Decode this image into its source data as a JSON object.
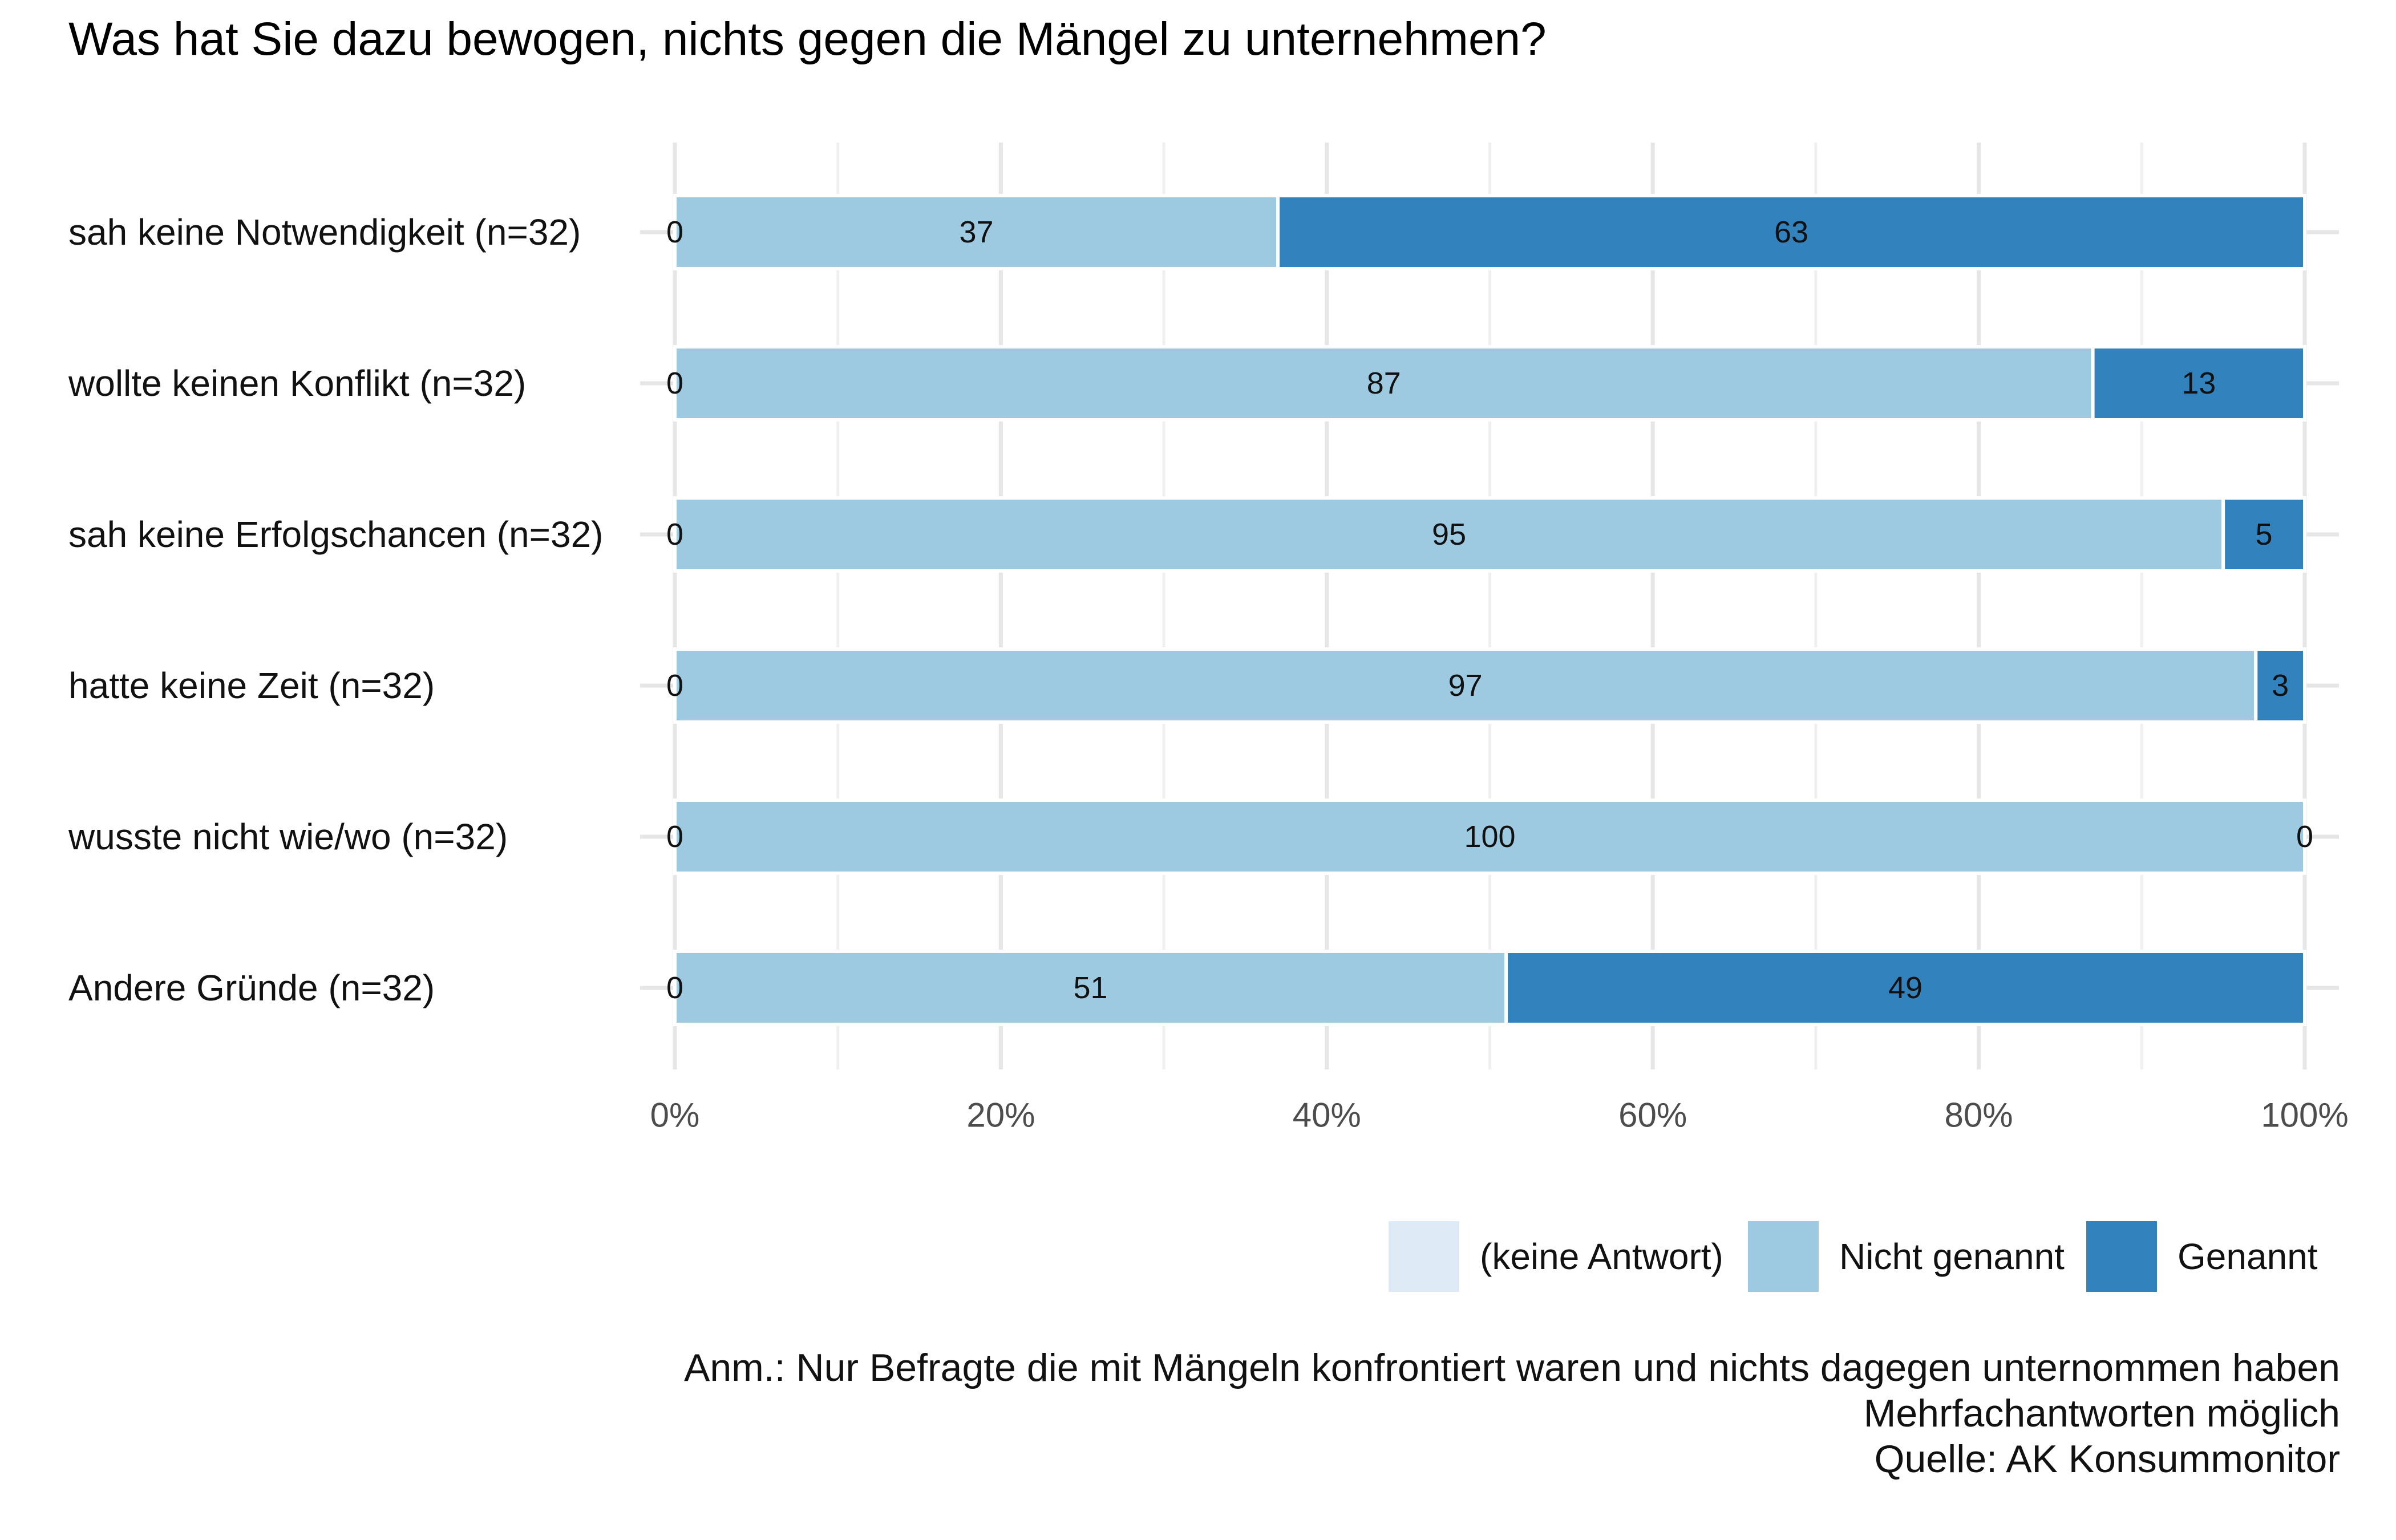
{
  "title": "Was hat Sie dazu bewogen, nichts gegen die Mängel zu unternehmen?",
  "caption": [
    "Anm.: Nur Befragte die mit Mängeln konfrontiert waren und nichts dagegen unternommen haben",
    "Mehrfachantworten möglich",
    "Quelle: AK Konsummonitor"
  ],
  "chart_data": {
    "type": "bar",
    "orientation": "horizontal",
    "stacked": true,
    "percent": true,
    "title": "Was hat Sie dazu bewogen, nichts gegen die Mängel zu unternehmen?",
    "categories": [
      "sah keine Notwendigkeit (n=32)",
      "wollte keinen Konflikt (n=32)",
      "sah keine Erfolgschancen (n=32)",
      "hatte keine Zeit (n=32)",
      "wusste nicht wie/wo (n=32)",
      "Andere Gründe (n=32)"
    ],
    "series": [
      {
        "name": "(keine Antwort)",
        "color": "#deebf7",
        "values": [
          0,
          0,
          0,
          0,
          0,
          0
        ]
      },
      {
        "name": "Nicht genannt",
        "color": "#9ecae1",
        "values": [
          37,
          87,
          95,
          97,
          100,
          51
        ]
      },
      {
        "name": "Genannt",
        "color": "#3182bd",
        "values": [
          63,
          13,
          5,
          3,
          0,
          49
        ]
      }
    ],
    "xlim": [
      0,
      100
    ],
    "xticks": [
      "0%",
      "20%",
      "40%",
      "60%",
      "80%",
      "100%"
    ],
    "grid": true,
    "legend": "bottom-right"
  }
}
